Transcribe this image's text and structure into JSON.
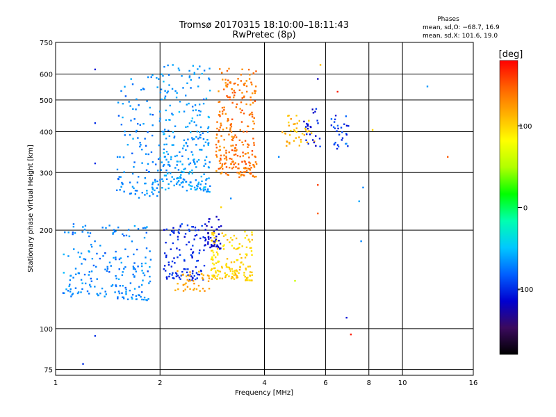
{
  "chart_data": {
    "type": "scatter",
    "title": "Tromsø 20170315 18:10:00–18:11:43",
    "subtitle": "RwPretec (8p)",
    "xlabel": "Frequency [MHz]",
    "ylabel": "Stationary phase Virtual Height [km]",
    "x_scale": "log",
    "y_scale": "log",
    "xlim": [
      1,
      16
    ],
    "ylim": [
      72,
      750
    ],
    "x_ticks": [
      1,
      2,
      4,
      6,
      8,
      10,
      16
    ],
    "y_ticks": [
      75,
      100,
      200,
      300,
      400,
      500,
      600,
      750
    ],
    "grid": true,
    "phase_box": {
      "title": "Phases",
      "line1": "mean, sd,O: −68.7, 16.9",
      "line2": "mean, sd,X: 101.6, 19.0"
    },
    "colorbar": {
      "label": "[deg]",
      "range": [
        -180,
        180
      ],
      "ticks": [
        100,
        0,
        -100
      ],
      "colors": [
        "#000000",
        "#3b0a5e",
        "#0000d0",
        "#0060ff",
        "#00c8ff",
        "#00ffb0",
        "#00ff00",
        "#b0ff00",
        "#ffff00",
        "#ffb000",
        "#ff6000",
        "#ff0000"
      ]
    },
    "clusters": [
      {
        "x0": 1.05,
        "x1": 1.9,
        "y0": 122,
        "y1": 210,
        "n": 200,
        "phase": -70,
        "sd": 12
      },
      {
        "x0": 1.5,
        "x1": 2.0,
        "y0": 250,
        "y1": 600,
        "n": 120,
        "phase": -70,
        "sd": 12
      },
      {
        "x0": 2.0,
        "x1": 2.8,
        "y0": 260,
        "y1": 640,
        "n": 260,
        "phase": -65,
        "sd": 12
      },
      {
        "x0": 2.05,
        "x1": 2.7,
        "y0": 140,
        "y1": 210,
        "n": 110,
        "phase": -100,
        "sd": 12
      },
      {
        "x0": 2.7,
        "x1": 3.0,
        "y0": 175,
        "y1": 220,
        "n": 45,
        "phase": -115,
        "sd": 10
      },
      {
        "x0": 2.2,
        "x1": 2.8,
        "y0": 130,
        "y1": 150,
        "n": 40,
        "phase": 120,
        "sd": 10
      },
      {
        "x0": 2.8,
        "x1": 3.7,
        "y0": 140,
        "y1": 200,
        "n": 160,
        "phase": 100,
        "sd": 15
      },
      {
        "x0": 2.9,
        "x1": 3.8,
        "y0": 290,
        "y1": 630,
        "n": 260,
        "phase": 140,
        "sd": 15
      },
      {
        "x0": 4.5,
        "x1": 5.6,
        "y0": 360,
        "y1": 460,
        "n": 40,
        "phase": 110,
        "sd": 18
      },
      {
        "x0": 5.2,
        "x1": 5.8,
        "y0": 360,
        "y1": 470,
        "n": 25,
        "phase": -110,
        "sd": 15
      },
      {
        "x0": 6.2,
        "x1": 7.0,
        "y0": 350,
        "y1": 450,
        "n": 30,
        "phase": -95,
        "sd": 20
      }
    ],
    "scattered_points": [
      {
        "x": 1.3,
        "y": 620,
        "phase": -110
      },
      {
        "x": 1.3,
        "y": 425,
        "phase": -100
      },
      {
        "x": 1.3,
        "y": 320,
        "phase": -100
      },
      {
        "x": 1.3,
        "y": 95,
        "phase": -100
      },
      {
        "x": 1.2,
        "y": 78,
        "phase": -100
      },
      {
        "x": 5.7,
        "y": 580,
        "phase": -120
      },
      {
        "x": 6.5,
        "y": 530,
        "phase": 170
      },
      {
        "x": 5.7,
        "y": 275,
        "phase": 160
      },
      {
        "x": 5.7,
        "y": 225,
        "phase": 150
      },
      {
        "x": 4.9,
        "y": 140,
        "phase": 60
      },
      {
        "x": 6.9,
        "y": 108,
        "phase": -110
      },
      {
        "x": 7.1,
        "y": 96,
        "phase": 170
      },
      {
        "x": 7.5,
        "y": 245,
        "phase": -60
      },
      {
        "x": 7.6,
        "y": 185,
        "phase": -70
      },
      {
        "x": 7.7,
        "y": 270,
        "phase": -70
      },
      {
        "x": 8.2,
        "y": 405,
        "phase": 100
      },
      {
        "x": 11.8,
        "y": 550,
        "phase": -65
      },
      {
        "x": 13.5,
        "y": 335,
        "phase": 150
      },
      {
        "x": 5.8,
        "y": 640,
        "phase": 110
      },
      {
        "x": 4.4,
        "y": 335,
        "phase": -70
      },
      {
        "x": 3.2,
        "y": 250,
        "phase": -70
      },
      {
        "x": 3.0,
        "y": 235,
        "phase": 100
      }
    ]
  }
}
